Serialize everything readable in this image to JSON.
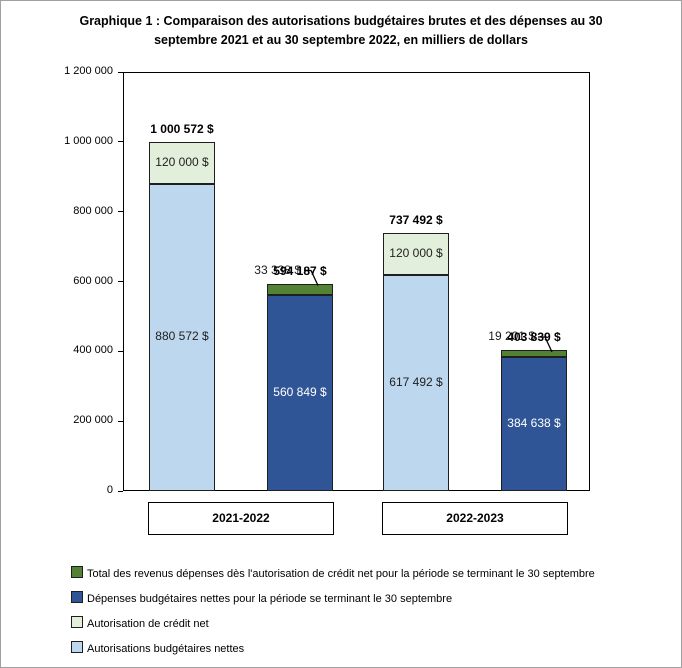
{
  "title": "Graphique 1 : Comparaison des autorisations budgétaires brutes et des dépenses au 30 septembre 2021 et au 30 septembre 2022, en milliers de dollars",
  "colors": {
    "light_blue": "#BDD7EE",
    "light_green": "#E2EFDA",
    "dark_blue": "#2F5597",
    "dark_green": "#548235",
    "axis": "#000000"
  },
  "chart_data": {
    "type": "stacked-bar",
    "title": "Graphique 1 : Comparaison des autorisations budgétaires brutes et des dépenses au 30 septembre 2021 et au 30 septembre 2022, en milliers de dollars",
    "unit": "milliers de dollars",
    "ylim": [
      0,
      1200000
    ],
    "y_tick_step": 200000,
    "y_tick_labels": [
      "0",
      "200 000",
      "400 000",
      "600 000",
      "800 000",
      "1 000 000",
      "1 200 000"
    ],
    "grid": false,
    "legend_position": "bottom-left",
    "categories": [
      "2021-2022",
      "2022-2023"
    ],
    "groups": [
      {
        "category": "2021-2022",
        "bars": [
          {
            "name": "autorisations-brutes-2021-2022",
            "total": 1000572,
            "total_label": "1 000 572 $",
            "segments": [
              {
                "series": "Autorisations budgétaires nettes",
                "value": 880572,
                "label": "880 572 $",
                "color": "#BDD7EE",
                "label_color": "#1f1f1f",
                "label_pos": "inside"
              },
              {
                "series": "Autorisation de crédit net",
                "value": 120000,
                "label": "120 000 $",
                "color": "#E2EFDA",
                "label_color": "#1f1f1f",
                "label_pos": "inside"
              }
            ]
          },
          {
            "name": "depenses-2021-2022",
            "total": 594187,
            "total_label": "594 187 $",
            "segments": [
              {
                "series": "Dépenses budgétaires nettes pour la période se terminant le 30 septembre",
                "value": 560849,
                "label": "560 849 $",
                "color": "#2F5597",
                "label_color": "#ffffff",
                "label_pos": "inside"
              },
              {
                "series": "Total des revenus dépenses dès l'autorisation de crédit net pour la période se terminant le 30 septembre",
                "value": 33338,
                "label": "33 338 $",
                "color": "#548235",
                "label_color": "#1a1a1a",
                "label_pos": "callout"
              }
            ]
          }
        ]
      },
      {
        "category": "2022-2023",
        "bars": [
          {
            "name": "autorisations-brutes-2022-2023",
            "total": 737492,
            "total_label": "737 492 $",
            "segments": [
              {
                "series": "Autorisations budgétaires nettes",
                "value": 617492,
                "label": "617 492 $",
                "color": "#BDD7EE",
                "label_color": "#1f1f1f",
                "label_pos": "inside"
              },
              {
                "series": "Autorisation de crédit net",
                "value": 120000,
                "label": "120 000 $",
                "color": "#E2EFDA",
                "label_color": "#1f1f1f",
                "label_pos": "inside"
              }
            ]
          },
          {
            "name": "depenses-2022-2023",
            "total": 403839,
            "total_label": "403 839 $",
            "segments": [
              {
                "series": "Dépenses budgétaires nettes pour la période se terminant le 30 septembre",
                "value": 384638,
                "label": "384 638 $",
                "color": "#2F5597",
                "label_color": "#ffffff",
                "label_pos": "inside"
              },
              {
                "series": "Total des revenus dépenses dès l'autorisation de crédit net pour la période se terminant le 30 septembre",
                "value": 19201,
                "label": "19 201 $",
                "color": "#548235",
                "label_color": "#1a1a1a",
                "label_pos": "callout"
              }
            ]
          }
        ]
      }
    ],
    "legend": [
      {
        "label": "Total des revenus dépenses dès l'autorisation de crédit net pour la période se terminant le 30 septembre",
        "color": "#548235"
      },
      {
        "label": "Dépenses budgétaires nettes pour la période se terminant le 30 septembre",
        "color": "#2F5597"
      },
      {
        "label": "Autorisation de crédit net",
        "color": "#E2EFDA"
      },
      {
        "label": "Autorisations budgétaires nettes",
        "color": "#BDD7EE"
      }
    ]
  }
}
